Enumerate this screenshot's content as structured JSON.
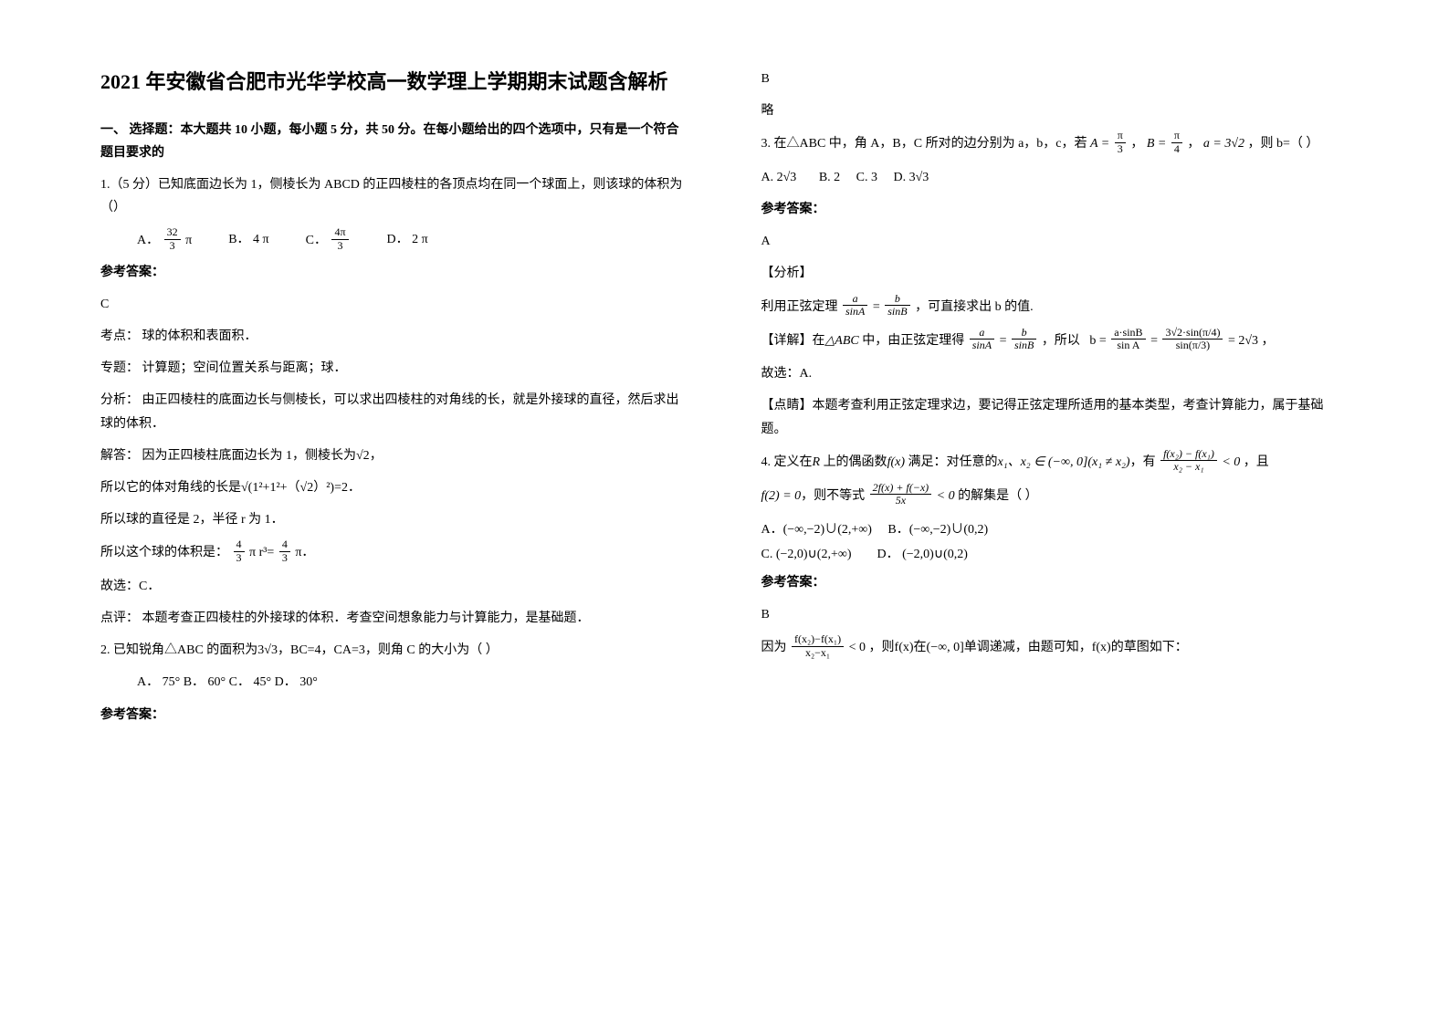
{
  "title": "2021 年安徽省合肥市光华学校高一数学理上学期期末试题含解析",
  "section1_head": "一、 选择题：本大题共 10 小题，每小题 5 分，共 50 分。在每小题给出的四个选项中，只有是一个符合题目要求的",
  "q1": {
    "text": "1.（5 分）已知底面边长为 1，侧棱长为 ABCD 的正四棱柱的各顶点均在同一个球面上，则该球的体积为（）",
    "optA_label": "A．",
    "optA_num": "32",
    "optA_den": "3",
    "optA_suffix": "π",
    "optB": "B．      4 π",
    "optC_label": "C．",
    "optC_num": "4π",
    "optC_den": "3",
    "optD": "D．      2 π",
    "ans_label": "参考答案：",
    "ans": "C",
    "kaodian": "考点：  球的体积和表面积．",
    "zhuanti": "专题：  计算题；空间位置关系与距离；球．",
    "fenxi": "分析：  由正四棱柱的底面边长与侧棱长，可以求出四棱柱的对角线的长，就是外接球的直径，然后求出球的体积．",
    "jieda1_pre": "解答：  因为正四棱柱底面边长为 1，侧棱长为",
    "jieda1_sqrt": "√2",
    "jieda1_post": "，",
    "jieda2_pre": "所以它的体对角线的长是",
    "jieda2_expr": "√(1²+1²+（√2）²)",
    "jieda2_post": "=2．",
    "jieda3": "所以球的直径是 2，半径 r 为 1．",
    "jieda4_pre": "所以这个球的体积是：",
    "jieda4_f1n": "4",
    "jieda4_f1d": "3",
    "jieda4_mid": "π r³=",
    "jieda4_f2n": "4",
    "jieda4_f2d": "3",
    "jieda4_post": "π．",
    "guxuan": "故选：C．",
    "dianping": "点评：  本题考查正四棱柱的外接球的体积．考查空间想象能力与计算能力，是基础题．"
  },
  "q2": {
    "text_pre": "2. 已知锐角△ABC 的面积为",
    "text_mid": "3√3",
    "text_post": "，BC=4，CA=3，则角 C 的大小为（    ）",
    "opts": "A．  75°       B．      60°     C．      45°     D．      30°",
    "ans_label": "参考答案：",
    "right_ans": "B",
    "right_lue": "略"
  },
  "q3": {
    "text_pre": "3. 在△ABC 中，角 A，B，C 所对的边分别为 a，b，c，若",
    "A_eq_num": "π",
    "A_eq_den": "3",
    "mid1": "，",
    "B_eq_num": "π",
    "B_eq_den": "4",
    "mid2": "，",
    "a_eq": "a = 3√2",
    "post": "，则 b=（          ）",
    "optA_label": "A.",
    "optA": "2√3",
    "optB": "B. 2",
    "optC": "C. 3",
    "optD_label": "D.",
    "optD": "3√3",
    "ans_label": "参考答案：",
    "ans": "A",
    "fenxi_head": "【分析】",
    "fenxi_pre": "利用正弦定理",
    "fenxi_fn1": "a",
    "fenxi_fd1": "sinA",
    "fenxi_eq": " = ",
    "fenxi_fn2": "b",
    "fenxi_fd2": "sinB",
    "fenxi_post": "，可直接求出 b 的值.",
    "xiangjie_pre": "【详解】在",
    "xiangjie_tri": "△ABC",
    "xiangjie_mid": " 中，由正弦定理得",
    "xj_fn1": "a",
    "xj_fd1": "sinA",
    "xj_fn2": "b",
    "xj_fd2": "sinB",
    "xj_mid2": "，所以",
    "b_eq_n": "a·sinB",
    "b_eq_d": "sin A",
    "b_eq2_n": "3√2·sin(π/4)",
    "b_eq2_d": "sin(π/3)",
    "b_result": " = 2√3",
    "guxuan": "故选：A.",
    "dianjing": "【点睛】本题考查利用正弦定理求边，要记得正弦定理所适用的基本类型，考查计算能力，属于基础题。"
  },
  "q4": {
    "text_pre": "4. 定义在",
    "R": "R",
    "text_mid1": " 上的偶函数",
    "fx": "f(x)",
    "text_mid2": " 满足：对任意的",
    "x1x2": "x₁、x₂ ∈ (−∞, 0](x₁ ≠ x₂)",
    "text_mid3": "，有  ",
    "frac_n": "f(x₂) − f(x₁)",
    "frac_d": "x₂ − x₁",
    "lt0": " < 0",
    "text_post": "  ，且",
    "line2_pre": "f(2) = 0",
    "line2_mid": "，则不等式   ",
    "line2_fn": "2f(x) + f(−x)",
    "line2_fd": "5x",
    "line2_lt": " < 0",
    "line2_post": "    的解集是（     ）",
    "optA": "A．(−∞,−2)∪(2,+∞)",
    "optB": "B．(−∞,−2)∪(0,2)",
    "optC": "C. (−2,0)∪(2,+∞)",
    "optD": "D．  (−2,0)∪(0,2)",
    "ans_label": "参考答案：",
    "ans": "B",
    "yin_pre": "因为  ",
    "yin_fn": "f(x₂)−f(x₁)",
    "yin_fd": "x₂−x₁",
    "yin_lt": " < 0",
    "yin_mid": "    ，则",
    "yin_fx": "f(x)",
    "yin_mid2": "在",
    "yin_dom": "(−∞, 0]",
    "yin_post": "单调递减，由题可知，",
    "yin_fx2": "f(x)",
    "yin_post2": "的草图如下："
  }
}
